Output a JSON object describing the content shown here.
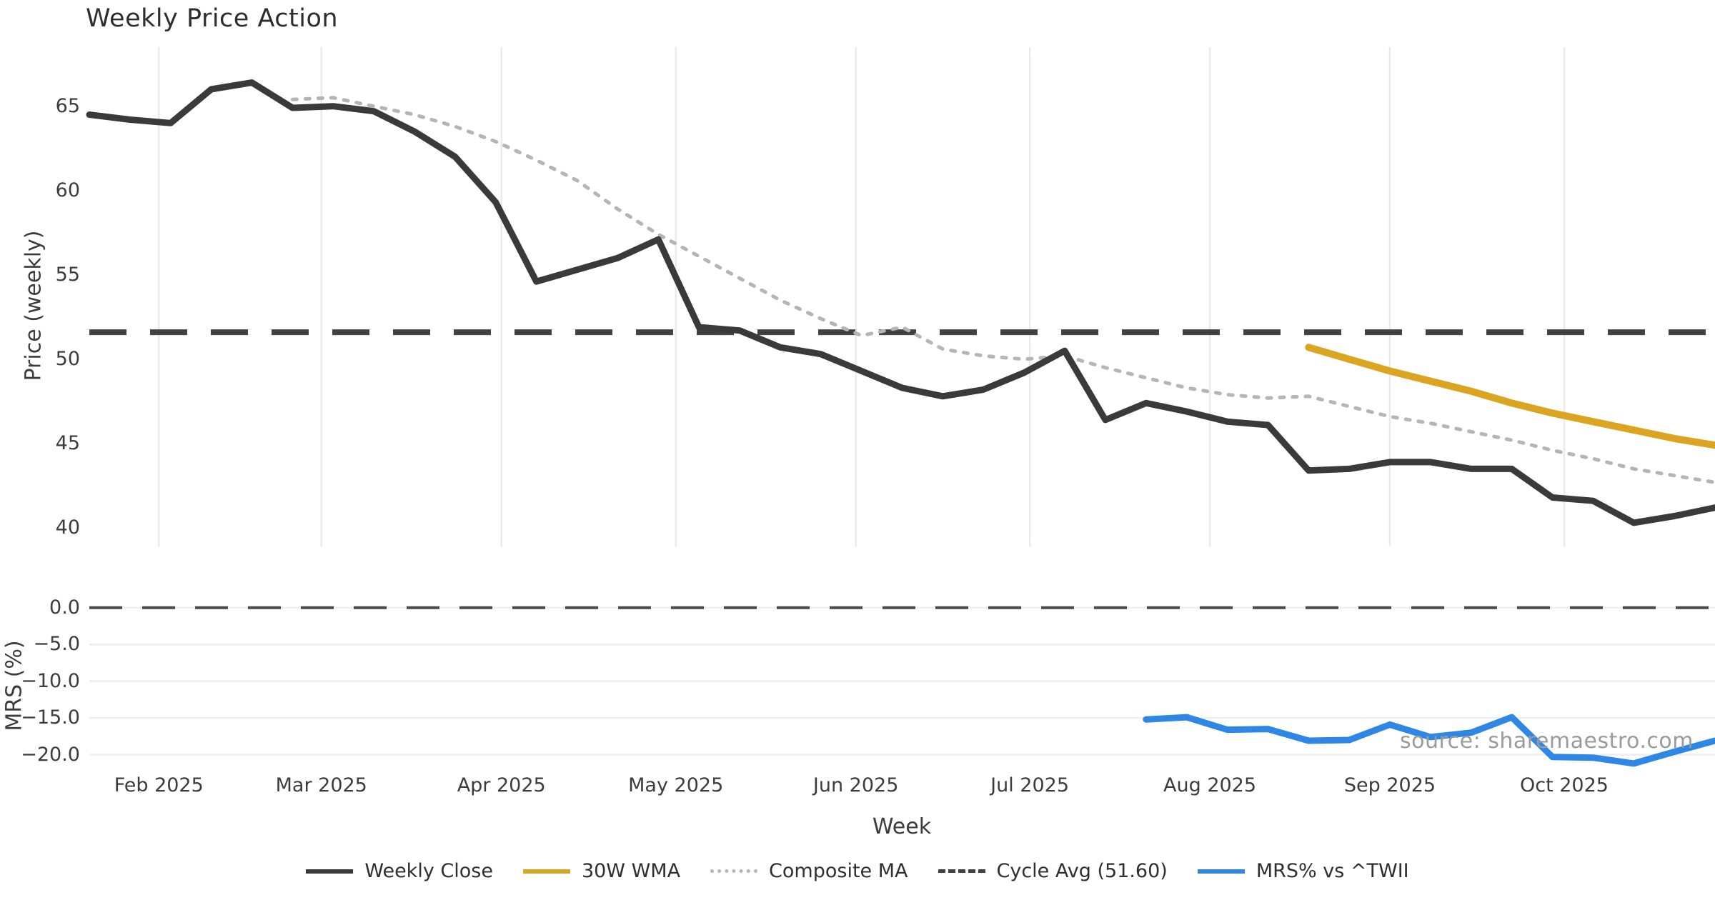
{
  "title": "Weekly Price Action",
  "watermark": "source: sharemaestro.com",
  "colors": {
    "weekly_close": "#3a3a3a",
    "wma_30w": "#dba421",
    "composite_ma": "#b5b5b5",
    "cycle_avg": "#424242",
    "mrs": "#2e86e5",
    "gridline": "#eaeaef",
    "tick_text": "#3c3c3c",
    "watermark_text": "#9b9b9b"
  },
  "axes": {
    "x": {
      "label": "Week",
      "month_ticks": [
        {
          "label": "Feb 2025",
          "week": 1.71
        },
        {
          "label": "Mar 2025",
          "week": 5.71
        },
        {
          "label": "Apr 2025",
          "week": 10.14
        },
        {
          "label": "May 2025",
          "week": 14.43
        },
        {
          "label": "Jun 2025",
          "week": 18.86
        },
        {
          "label": "Jul 2025",
          "week": 23.14
        },
        {
          "label": "Aug 2025",
          "week": 27.57
        },
        {
          "label": "Sep 2025",
          "week": 32.0
        },
        {
          "label": "Oct 2025",
          "week": 36.29
        }
      ]
    },
    "top": {
      "ylabel": "Price (weekly)",
      "yticks": [
        {
          "label": "65",
          "value": 65
        },
        {
          "label": "60",
          "value": 60
        },
        {
          "label": "55",
          "value": 55
        },
        {
          "label": "50",
          "value": 50
        },
        {
          "label": "45",
          "value": 45
        },
        {
          "label": "40",
          "value": 40
        }
      ]
    },
    "bottom": {
      "ylabel": "MRS (%)",
      "yticks": [
        {
          "label": "0.0",
          "value": 0
        },
        {
          "label": "−5.0",
          "value": -5
        },
        {
          "label": "−10.0",
          "value": -10
        },
        {
          "label": "−15.0",
          "value": -15
        },
        {
          "label": "−20.0",
          "value": -20
        }
      ]
    }
  },
  "chart_data": [
    {
      "type": "line",
      "title": "Weekly Price Action",
      "xlabel": "Week",
      "ylabel": "Price (weekly)",
      "ylim": [
        38.9,
        68.5
      ],
      "x_unit": "weeks from first plotted week (weekly data, mid-Jan to late Oct 2025)",
      "grid": "vertical-month-lines",
      "series": [
        {
          "name": "Weekly Close",
          "style": "solid",
          "color": "#3a3a3a",
          "x_start_week": 0,
          "values": [
            64.5,
            64.2,
            64.0,
            66.0,
            66.4,
            64.9,
            65.0,
            64.7,
            63.5,
            62.0,
            59.3,
            54.6,
            55.3,
            56.0,
            57.1,
            51.9,
            51.7,
            50.7,
            50.3,
            49.3,
            48.3,
            47.8,
            48.2,
            49.2,
            50.5,
            46.4,
            47.4,
            46.9,
            46.3,
            46.1,
            43.4,
            43.5,
            43.9,
            43.9,
            43.5,
            43.5,
            41.8,
            41.6,
            40.3,
            40.7,
            41.2
          ]
        },
        {
          "name": "Composite MA",
          "style": "dotted",
          "color": "#b5b5b5",
          "x_start_week": 5,
          "values": [
            65.4,
            65.5,
            65.0,
            64.5,
            63.8,
            62.9,
            61.8,
            60.6,
            58.9,
            57.4,
            56.1,
            54.8,
            53.5,
            52.4,
            51.4,
            51.9,
            50.6,
            50.2,
            50.0,
            50.2,
            49.5,
            48.9,
            48.3,
            47.9,
            47.7,
            47.8,
            47.2,
            46.6,
            46.2,
            45.7,
            45.2,
            44.6,
            44.1,
            43.5,
            43.1,
            42.7
          ]
        },
        {
          "name": "30W WMA",
          "style": "solid",
          "color": "#dba421",
          "x_start_week": 30,
          "values": [
            50.7,
            50.0,
            49.3,
            48.7,
            48.1,
            47.4,
            46.8,
            46.3,
            45.8,
            45.3,
            44.9
          ]
        },
        {
          "name": "Cycle Avg",
          "style": "dashed",
          "color": "#424242",
          "constant": 51.6
        }
      ]
    },
    {
      "type": "line",
      "xlabel": "Week",
      "ylabel": "MRS (%)",
      "ylim": [
        -21.5,
        2.8
      ],
      "grid": "horizontal-lines",
      "series": [
        {
          "name": "MRS% vs ^TWII",
          "style": "solid",
          "color": "#2e86e5",
          "x_start_week": 26,
          "values": [
            -15.2,
            -14.9,
            -16.6,
            -16.5,
            -18.1,
            -18.0,
            -15.9,
            -17.6,
            -17.0,
            -14.9,
            -20.3,
            -20.4,
            -21.2,
            -19.6,
            -18.1
          ]
        },
        {
          "name": "Zero line",
          "style": "dashed",
          "color": "#4a4a4a",
          "constant": 0
        }
      ]
    }
  ],
  "legend": {
    "items": [
      {
        "label": "Weekly Close",
        "color": "#3a3a3a",
        "style": "solid"
      },
      {
        "label": "30W WMA",
        "color": "#dba421",
        "style": "solid"
      },
      {
        "label": "Composite MA",
        "color": "#b5b5b5",
        "style": "dotted"
      },
      {
        "label": "Cycle Avg (51.60)",
        "color": "#424242",
        "style": "dashed"
      },
      {
        "label": "MRS% vs ^TWII",
        "color": "#2e86e5",
        "style": "solid"
      }
    ]
  }
}
